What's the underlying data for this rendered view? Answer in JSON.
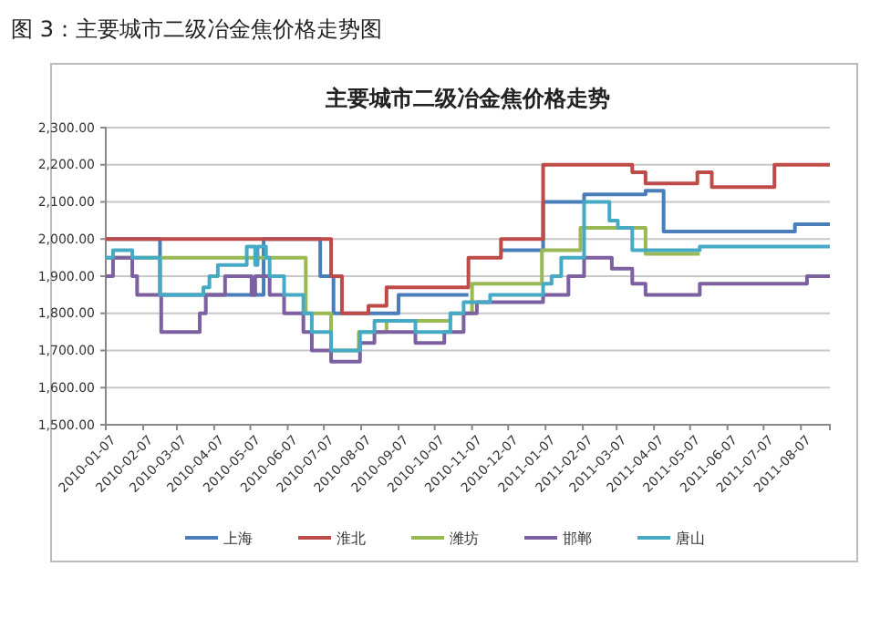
{
  "chart_data": {
    "type": "step",
    "title": "主要城市二级冶金焦价格走势",
    "annotations": [
      "图 3：主要城市二级冶金焦价格走势图"
    ],
    "xlim": [
      "2010-01-07",
      "2011-08-31"
    ],
    "xticks": [
      "2010-01-07",
      "2010-02-07",
      "2010-03-07",
      "2010-04-07",
      "2010-05-07",
      "2010-06-07",
      "2010-07-07",
      "2010-08-07",
      "2010-09-07",
      "2010-10-07",
      "2010-11-07",
      "2010-12-07",
      "2011-01-07",
      "2011-02-07",
      "2011-03-07",
      "2011-04-07",
      "2011-05-07",
      "2011-06-07",
      "2011-07-07",
      "2011-08-07"
    ],
    "ylim": [
      1500,
      2300
    ],
    "yticks": [
      {
        "value": 1500,
        "label": "1,500.00"
      },
      {
        "value": 1600,
        "label": "1,600.00"
      },
      {
        "value": 1700,
        "label": "1,700.00"
      },
      {
        "value": 1800,
        "label": "1,800.00"
      },
      {
        "value": 1900,
        "label": "1,900.00"
      },
      {
        "value": 2000,
        "label": "2,000.00"
      },
      {
        "value": 2100,
        "label": "2,100.00"
      },
      {
        "value": 2200,
        "label": "2,200.00"
      },
      {
        "value": 2300,
        "label": "2,300.00"
      }
    ],
    "grid": "y",
    "legend": "bottom",
    "series": [
      {
        "name": "上海",
        "color": "#4a7ebb",
        "x": [
          "2010-01-07",
          "2010-02-21",
          "2010-05-18",
          "2010-07-04",
          "2010-07-15",
          "2010-09-07",
          "2010-11-04",
          "2010-11-05",
          "2010-12-01",
          "2011-01-05",
          "2011-02-08",
          "2011-03-31",
          "2011-04-15",
          "2011-08-02",
          "2011-08-31"
        ],
        "values": [
          2000,
          1850,
          2000,
          1900,
          1800,
          1850,
          1850,
          null,
          1970,
          2100,
          2120,
          2130,
          2020,
          2040,
          2040
        ]
      },
      {
        "name": "淮北",
        "color": "#be4b48",
        "x": [
          "2010-01-07",
          "2010-07-13",
          "2010-07-22",
          "2010-08-13",
          "2010-08-28",
          "2010-11-04",
          "2010-12-01",
          "2011-01-05",
          "2011-03-20",
          "2011-03-31",
          "2011-05-13",
          "2011-05-25",
          "2011-07-16",
          "2011-08-31"
        ],
        "values": [
          2000,
          1900,
          1800,
          1820,
          1870,
          1950,
          2000,
          2200,
          2180,
          2150,
          2180,
          2140,
          2200,
          2200
        ]
      },
      {
        "name": "潍坊",
        "color": "#98b954",
        "x": [
          "2010-01-07",
          "2010-06-22",
          "2010-07-13",
          "2010-08-05",
          "2010-08-28",
          "2010-10-20",
          "2010-11-07",
          "2011-01-04",
          "2011-02-05",
          "2011-03-31",
          "2011-05-15"
        ],
        "values": [
          1950,
          1800,
          1700,
          1750,
          1780,
          1800,
          1880,
          1970,
          2030,
          1960,
          1960
        ]
      },
      {
        "name": "邯郸",
        "color": "#7d60a0",
        "x": [
          "2010-01-07",
          "2010-01-13",
          "2010-01-29",
          "2010-02-02",
          "2010-02-22",
          "2010-03-26",
          "2010-03-31",
          "2010-04-16",
          "2010-05-08",
          "2010-05-11",
          "2010-05-23",
          "2010-06-04",
          "2010-06-20",
          "2010-06-27",
          "2010-07-13",
          "2010-08-06",
          "2010-08-18",
          "2010-09-21",
          "2010-10-15",
          "2010-10-31",
          "2010-11-11",
          "2011-01-05",
          "2011-01-26",
          "2011-02-08",
          "2011-03-03",
          "2011-03-20",
          "2011-03-31",
          "2011-05-15",
          "2011-08-12",
          "2011-08-31"
        ],
        "values": [
          1900,
          1950,
          1900,
          1850,
          1750,
          1800,
          1850,
          1900,
          1850,
          1900,
          1850,
          1800,
          1750,
          1700,
          1670,
          1720,
          1750,
          1720,
          1750,
          1800,
          1830,
          1850,
          1900,
          1950,
          1920,
          1880,
          1850,
          1880,
          1900,
          1900
        ]
      },
      {
        "name": "唐山",
        "color": "#46aac5",
        "x": [
          "2010-01-07",
          "2010-01-13",
          "2010-01-29",
          "2010-02-21",
          "2010-03-29",
          "2010-04-03",
          "2010-04-10",
          "2010-05-04",
          "2010-05-11",
          "2010-05-13",
          "2010-05-20",
          "2010-05-23",
          "2010-06-04",
          "2010-06-20",
          "2010-06-27",
          "2010-07-13",
          "2010-08-06",
          "2010-08-18",
          "2010-09-21",
          "2010-10-20",
          "2010-10-31",
          "2010-11-22",
          "2011-01-05",
          "2011-01-12",
          "2011-01-20",
          "2011-02-08",
          "2011-03-01",
          "2011-03-08",
          "2011-03-20",
          "2011-05-15",
          "2011-08-31"
        ],
        "values": [
          1950,
          1970,
          1950,
          1850,
          1870,
          1900,
          1930,
          1980,
          1930,
          1980,
          1950,
          1900,
          1850,
          1800,
          1750,
          1700,
          1750,
          1780,
          1750,
          1800,
          1830,
          1850,
          1880,
          1900,
          1950,
          2100,
          2050,
          2030,
          1970,
          1980,
          1980
        ]
      }
    ]
  }
}
